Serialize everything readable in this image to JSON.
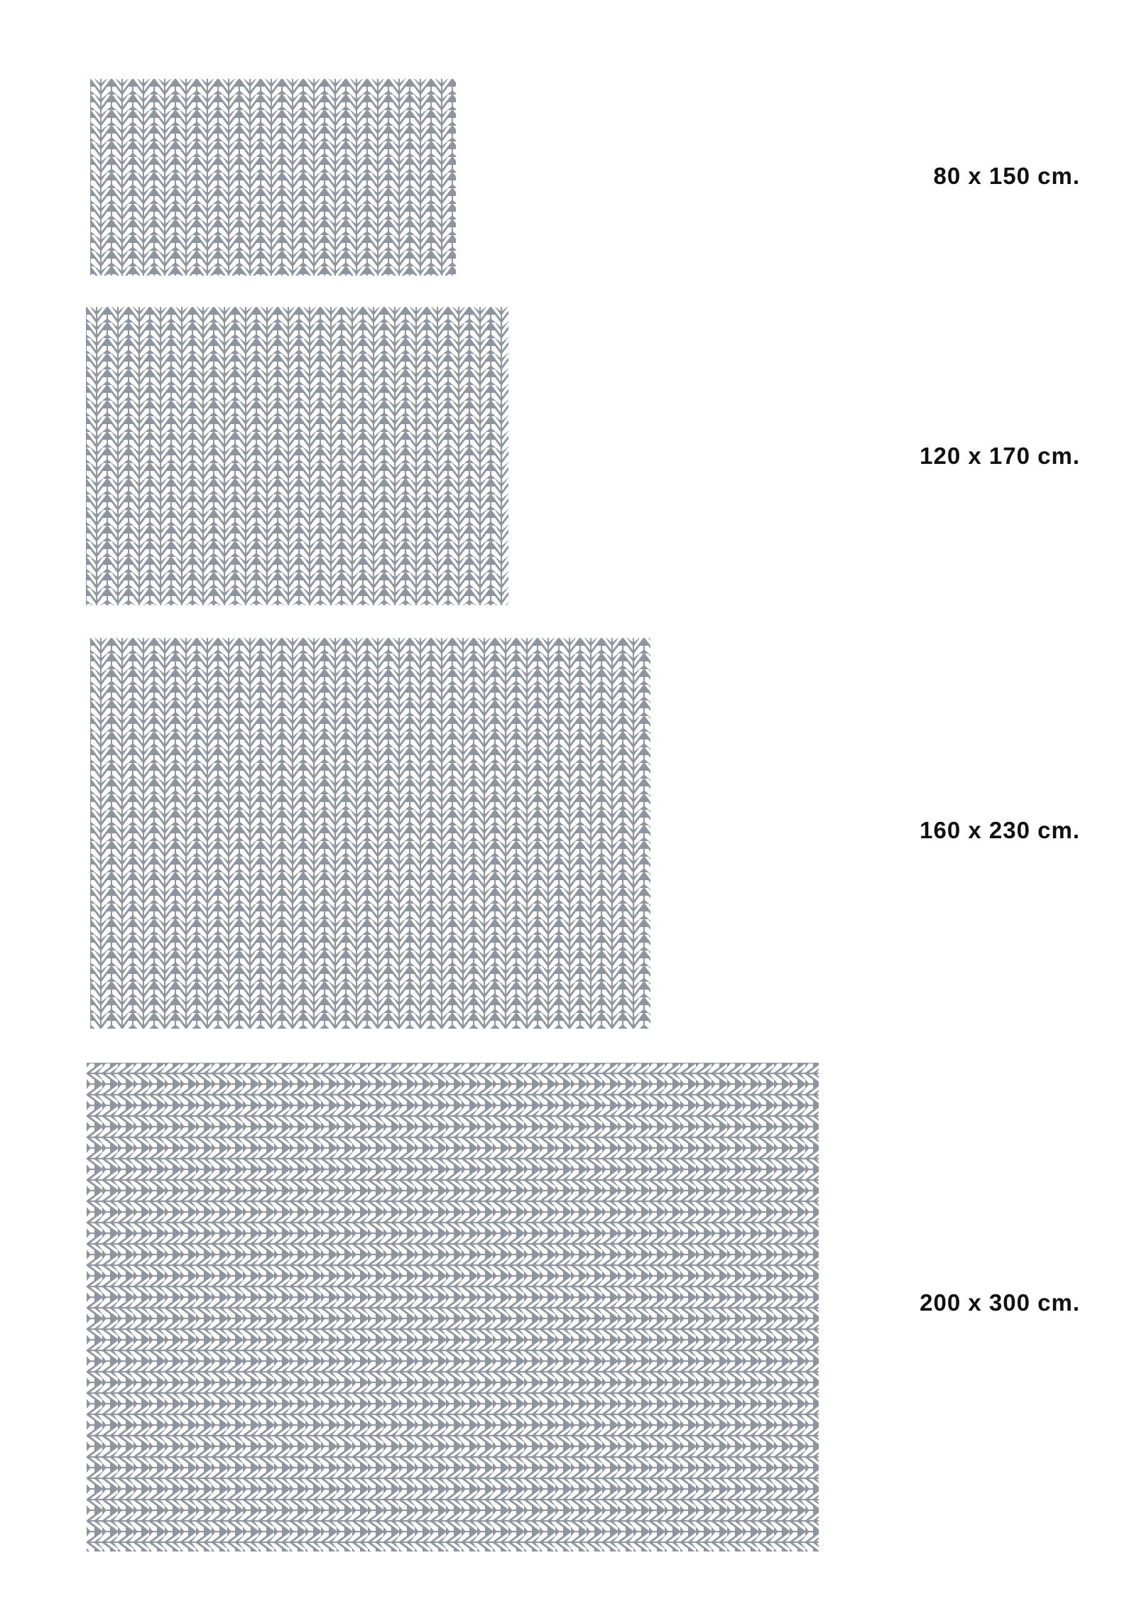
{
  "colors": {
    "rug_base": "#8e959e",
    "rug_stripe": "#ffffff",
    "background": "#ffffff"
  },
  "rugs": [
    {
      "size_label": "80 x 150 cm.",
      "pattern": "herringbone-vertical"
    },
    {
      "size_label": "120 x 170 cm.",
      "pattern": "herringbone-vertical"
    },
    {
      "size_label": "160 x 230 cm.",
      "pattern": "herringbone-vertical"
    },
    {
      "size_label": "200 x 300 cm.",
      "pattern": "herringbone-horizontal"
    }
  ]
}
